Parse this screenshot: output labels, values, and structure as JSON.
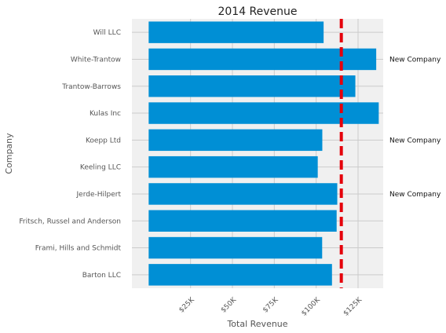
{
  "chart_data": {
    "type": "bar",
    "orientation": "horizontal",
    "title": "2014 Revenue",
    "xlabel": "Total Revenue",
    "ylabel": "Company",
    "categories": [
      "Barton LLC",
      "Frami, Hills and Schmidt",
      "Fritsch, Russel and Anderson",
      "Jerde-Hilpert",
      "Keeling LLC",
      "Koepp Ltd",
      "Kulas Inc",
      "Trantow-Barrows",
      "White-Trantow",
      "Will LLC"
    ],
    "values": [
      109438,
      103569,
      112214,
      112591,
      100934,
      103660,
      137352,
      123381,
      135841,
      104437
    ],
    "xlim": [
      -10000,
      140000
    ],
    "xticks": [
      25000,
      50000,
      75000,
      100000,
      125000
    ],
    "xtick_labels": [
      "$25K",
      "$50K",
      "$75K",
      "$100K",
      "$125K"
    ],
    "reference_line": {
      "value": 115000,
      "color": "#e5000b",
      "style": "dashed"
    },
    "annotations": [
      {
        "category": "White-Trantow",
        "text": "New Company"
      },
      {
        "category": "Koepp Ltd",
        "text": "New Company"
      },
      {
        "category": "Jerde-Hilpert",
        "text": "New Company"
      }
    ],
    "grid": true,
    "bar_color": "#008fd5",
    "background_color": "#f0f0f0",
    "grid_color": "#cbcbcb"
  }
}
